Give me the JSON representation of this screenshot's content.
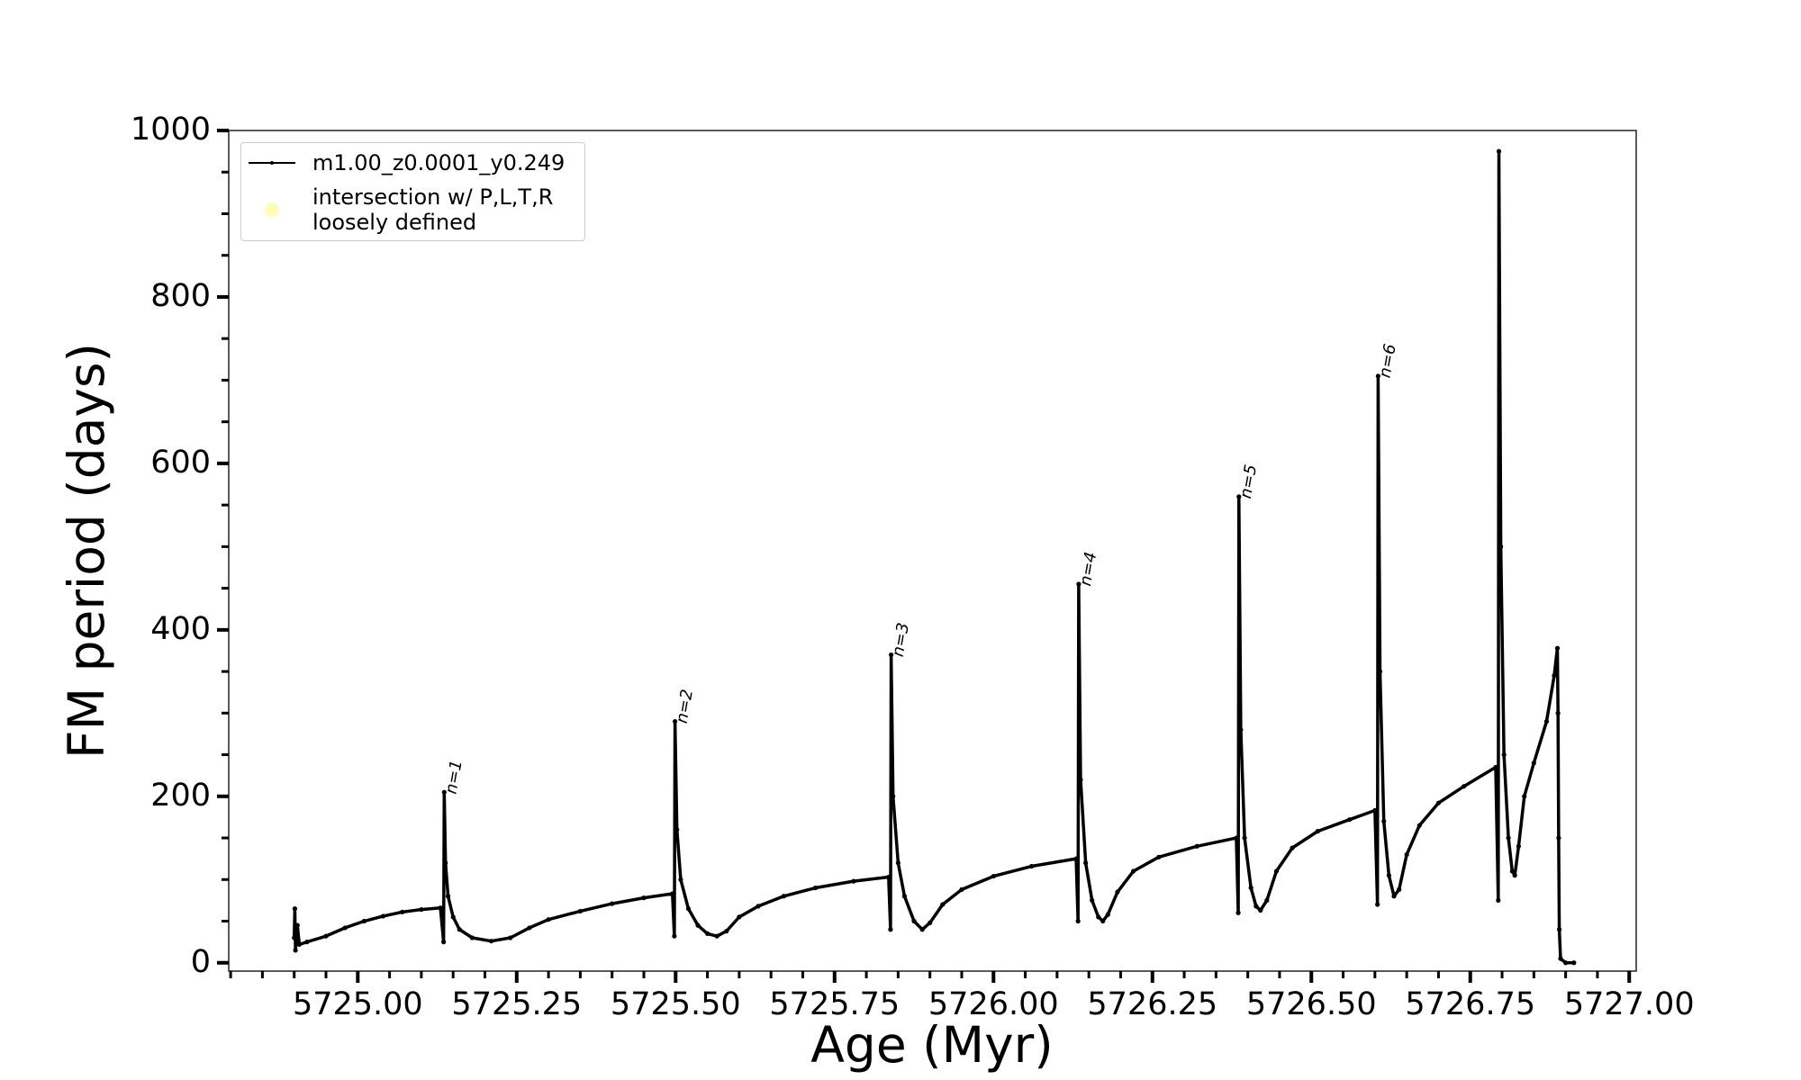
{
  "chart_data": {
    "type": "line",
    "xlabel": "Age (Myr)",
    "ylabel": "FM period (days)",
    "xlim": [
      5724.797,
      5727.011
    ],
    "ylim": [
      -10,
      1000
    ],
    "xticks": [
      {
        "value": 5725,
        "label": "5725.00"
      },
      {
        "value": 5725.25,
        "label": "5725.25"
      },
      {
        "value": 5725.5,
        "label": "5725.50"
      },
      {
        "value": 5725.75,
        "label": "5725.75"
      },
      {
        "value": 5726,
        "label": "5726.00"
      },
      {
        "value": 5726.25,
        "label": "5726.25"
      },
      {
        "value": 5726.5,
        "label": "5726.50"
      },
      {
        "value": 5726.75,
        "label": "5726.75"
      },
      {
        "value": 5727,
        "label": "5727.00"
      }
    ],
    "xminorticks": [
      5724.8,
      5724.85,
      5724.9,
      5724.95,
      5725.05,
      5725.1,
      5725.15,
      5725.2,
      5725.3,
      5725.35,
      5725.4,
      5725.45,
      5725.55,
      5725.6,
      5725.65,
      5725.7,
      5725.8,
      5725.85,
      5725.9,
      5725.95,
      5726.05,
      5726.1,
      5726.15,
      5726.2,
      5726.3,
      5726.35,
      5726.4,
      5726.45,
      5726.55,
      5726.6,
      5726.65,
      5726.7,
      5726.8,
      5726.85,
      5726.9,
      5726.95
    ],
    "yticks": [
      0,
      200,
      400,
      600,
      800,
      1000
    ],
    "yminorticks": [
      50,
      100,
      150,
      250,
      300,
      350,
      450,
      500,
      550,
      650,
      700,
      750,
      850,
      900,
      950
    ],
    "legend": "upper left",
    "series": [
      {
        "name": "m1.00_z0.0001_y0.249",
        "color": "#000000",
        "marker": "dot",
        "x": [
          5724.9,
          5724.901,
          5724.902,
          5724.905,
          5724.908,
          5724.92,
          5724.95,
          5724.98,
          5725.01,
          5725.04,
          5725.07,
          5725.1,
          5725.13,
          5725.135,
          5725.136,
          5725.138,
          5725.142,
          5725.15,
          5725.16,
          5725.18,
          5725.21,
          5725.24,
          5725.27,
          5725.3,
          5725.35,
          5725.4,
          5725.45,
          5725.495,
          5725.498,
          5725.499,
          5725.502,
          5725.508,
          5725.52,
          5725.535,
          5725.55,
          5725.565,
          5725.58,
          5725.6,
          5725.63,
          5725.67,
          5725.72,
          5725.78,
          5725.835,
          5725.838,
          5725.839,
          5725.842,
          5725.85,
          5725.86,
          5725.875,
          5725.888,
          5725.9,
          5725.92,
          5725.95,
          5726.0,
          5726.06,
          5726.13,
          5726.133,
          5726.134,
          5726.137,
          5726.145,
          5726.155,
          5726.165,
          5726.172,
          5726.18,
          5726.195,
          5726.22,
          5726.26,
          5726.32,
          5726.382,
          5726.385,
          5726.386,
          5726.389,
          5726.395,
          5726.405,
          5726.413,
          5726.42,
          5726.43,
          5726.445,
          5726.47,
          5726.51,
          5726.56,
          5726.6,
          5726.604,
          5726.605,
          5726.608,
          5726.614,
          5726.622,
          5726.63,
          5726.638,
          5726.65,
          5726.67,
          5726.7,
          5726.74,
          5726.79,
          5726.794,
          5726.795,
          5726.798,
          5726.803,
          5726.81,
          5726.816,
          5726.82,
          5726.826,
          5726.835,
          5726.85,
          5726.87,
          5726.882,
          5726.887,
          5726.888,
          5726.889,
          5726.89,
          5726.892,
          5726.9,
          5726.913
        ],
        "values": [
          30,
          65,
          15,
          45,
          22,
          25,
          32,
          42,
          50,
          56,
          61,
          64,
          66,
          25,
          205,
          120,
          80,
          55,
          40,
          30,
          26,
          30,
          42,
          52,
          62,
          71,
          78,
          83,
          32,
          290,
          160,
          100,
          65,
          45,
          35,
          32,
          38,
          55,
          68,
          80,
          90,
          98,
          103,
          40,
          370,
          200,
          120,
          80,
          50,
          40,
          48,
          70,
          88,
          104,
          116,
          125,
          50,
          455,
          220,
          120,
          75,
          55,
          50,
          58,
          85,
          110,
          127,
          140,
          150,
          60,
          560,
          280,
          150,
          90,
          68,
          63,
          75,
          110,
          138,
          158,
          172,
          183,
          70,
          705,
          350,
          170,
          105,
          80,
          88,
          130,
          165,
          192,
          212,
          235,
          75,
          975,
          500,
          250,
          150,
          110,
          105,
          140,
          200,
          240,
          290,
          345,
          378,
          300,
          150,
          40,
          5,
          0,
          0
        ]
      },
      {
        "name": "intersection w/ P,L,T,R\nloosely defined",
        "color": "#ffffb3",
        "marker": "circle",
        "x": [],
        "values": []
      }
    ],
    "annotations": [
      {
        "text": "n=1",
        "x": 5725.136,
        "y": 205
      },
      {
        "text": "n=2",
        "x": 5725.499,
        "y": 290
      },
      {
        "text": "n=3",
        "x": 5725.839,
        "y": 370
      },
      {
        "text": "n=4",
        "x": 5726.134,
        "y": 455
      },
      {
        "text": "n=5",
        "x": 5726.386,
        "y": 560
      },
      {
        "text": "n=6",
        "x": 5726.605,
        "y": 705
      }
    ]
  }
}
